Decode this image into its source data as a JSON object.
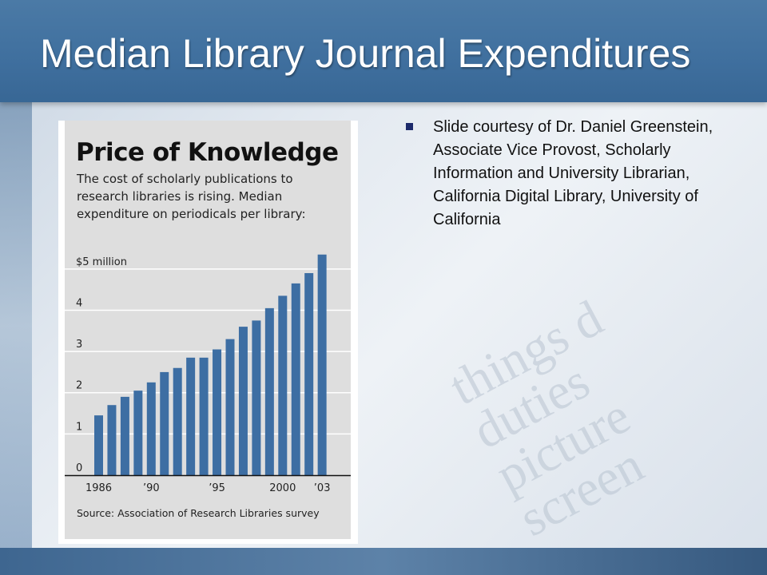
{
  "slide": {
    "title": "Median Library Journal Expenditures",
    "bullet": "Slide courtesy of Dr. Daniel Greenstein, Associate Vice Provost, Scholarly Information and University Librarian, California Digital Library, University of California"
  },
  "colors": {
    "header": "#3f6f9e",
    "bar": "#3d6ea3",
    "bullet": "#1c2a6b"
  },
  "chart_data": {
    "type": "bar",
    "title": "Price of Knowledge",
    "subtitle": "The cost of scholarly publications to research libraries is rising. Median expenditure on periodicals per library:",
    "source": "Source: Association of Research Libraries survey",
    "categories": [
      "1986",
      "1987",
      "1988",
      "1989",
      "1990",
      "1991",
      "1992",
      "1993",
      "1994",
      "1995",
      "1996",
      "1997",
      "1998",
      "1999",
      "2000",
      "2001",
      "2002",
      "2003"
    ],
    "values": [
      1.45,
      1.7,
      1.9,
      2.05,
      2.25,
      2.5,
      2.6,
      2.85,
      2.85,
      3.05,
      3.3,
      3.6,
      3.75,
      4.05,
      4.35,
      4.65,
      4.9,
      5.35
    ],
    "y_tick_labels": [
      "0",
      "1",
      "2",
      "3",
      "4",
      "$5 million"
    ],
    "y_ticks": [
      0,
      1,
      2,
      3,
      4,
      5
    ],
    "x_tick_labels": [
      {
        "label": "1986",
        "at": "1986"
      },
      {
        "label": "’90",
        "at": "1990"
      },
      {
        "label": "’95",
        "at": "1995"
      },
      {
        "label": "2000",
        "at": "2000"
      },
      {
        "label": "’03",
        "at": "2003"
      }
    ],
    "ylim": [
      0,
      5.5
    ],
    "grid": true,
    "xlabel": "",
    "ylabel": ""
  }
}
